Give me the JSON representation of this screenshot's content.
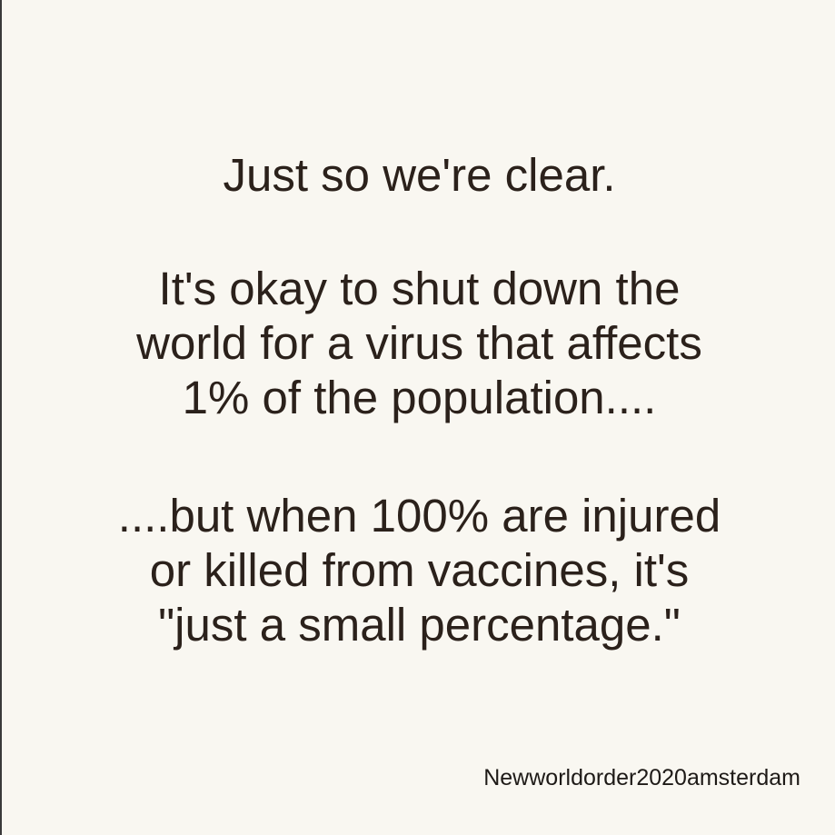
{
  "post": {
    "heading": "Just so we're clear.",
    "paragraph_2": [
      "It's okay to shut down the",
      "world for a virus that affects",
      "1% of the population...."
    ],
    "paragraph_3": [
      "....but when 100% are injured",
      "or killed from vaccines, it's",
      "\"just a small percentage.\""
    ],
    "credit": "Newworldorder2020amsterdam"
  },
  "colors": {
    "background": "#f9f7f1",
    "text": "#2b211b",
    "left_border": "#3a3a3a"
  }
}
